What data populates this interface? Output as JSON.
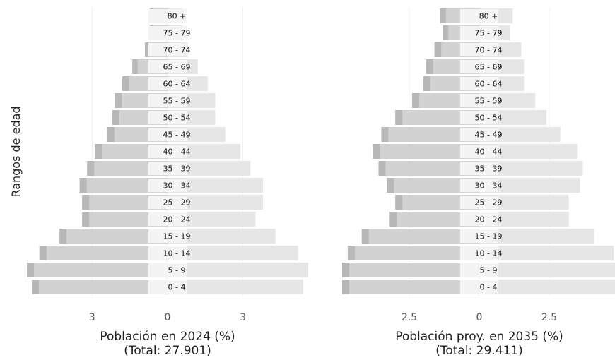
{
  "y_axis_label": "Rangos de edad",
  "chart_data": [
    {
      "type": "bar",
      "orientation": "horizontal-pyramid",
      "xlabel": "Población en 2024 (%)",
      "xlabel_total": "(Total: 27.901)",
      "categories": [
        "0 - 4",
        "5 - 9",
        "10 - 14",
        "15 - 19",
        "20 - 24",
        "25 - 29",
        "30 - 34",
        "35 - 39",
        "40 - 44",
        "45 - 49",
        "50 - 54",
        "55 - 59",
        "60 - 64",
        "65 - 69",
        "70 - 74",
        "75 - 79",
        "80 +"
      ],
      "tick_labels": [
        "3",
        "0",
        "3"
      ],
      "tick_values": [
        -3,
        0,
        3
      ],
      "xlim": [
        -5.6,
        5.6
      ],
      "series": [
        {
          "side": "left",
          "color": "#d2d2d2",
          "values": [
            5.4,
            5.6,
            5.1,
            4.3,
            3.4,
            3.4,
            3.5,
            3.2,
            2.9,
            2.4,
            2.2,
            2.1,
            1.8,
            1.4,
            0.9,
            0.7,
            0.7
          ]
        },
        {
          "side": "right",
          "color": "#e6e6e6",
          "values": [
            5.4,
            5.6,
            5.2,
            4.3,
            3.5,
            3.8,
            3.8,
            3.3,
            2.9,
            2.3,
            1.9,
            1.9,
            1.6,
            1.2,
            0.8,
            0.6,
            0.6
          ]
        }
      ]
    },
    {
      "type": "bar",
      "orientation": "horizontal-pyramid",
      "xlabel": "Población proy. en 2035 (%)",
      "xlabel_total": "(Total: 29.411)",
      "categories": [
        "0 - 4",
        "5 - 9",
        "10 - 14",
        "15 - 19",
        "20 - 24",
        "25 - 29",
        "30 - 34",
        "35 - 39",
        "40 - 44",
        "45 - 49",
        "50 - 54",
        "55 - 59",
        "60 - 64",
        "65 - 69",
        "70 - 74",
        "75 - 79",
        "80 +"
      ],
      "tick_labels": [
        "2.5",
        "0",
        "2.5"
      ],
      "tick_values": [
        -2.5,
        0,
        2.5
      ],
      "xlim": [
        -4.9,
        4.9
      ],
      "series": [
        {
          "side": "left",
          "color": "#d2d2d2",
          "values": [
            4.9,
            4.9,
            4.7,
            4.2,
            3.2,
            3.0,
            3.3,
            3.6,
            3.8,
            3.5,
            3.0,
            2.4,
            2.0,
            1.9,
            1.6,
            1.3,
            1.4
          ]
        },
        {
          "side": "right",
          "color": "#e6e6e6",
          "values": [
            4.9,
            4.9,
            4.8,
            4.1,
            3.2,
            3.2,
            3.6,
            3.7,
            3.5,
            2.9,
            2.4,
            2.0,
            1.6,
            1.6,
            1.5,
            1.1,
            1.2
          ]
        }
      ]
    }
  ]
}
